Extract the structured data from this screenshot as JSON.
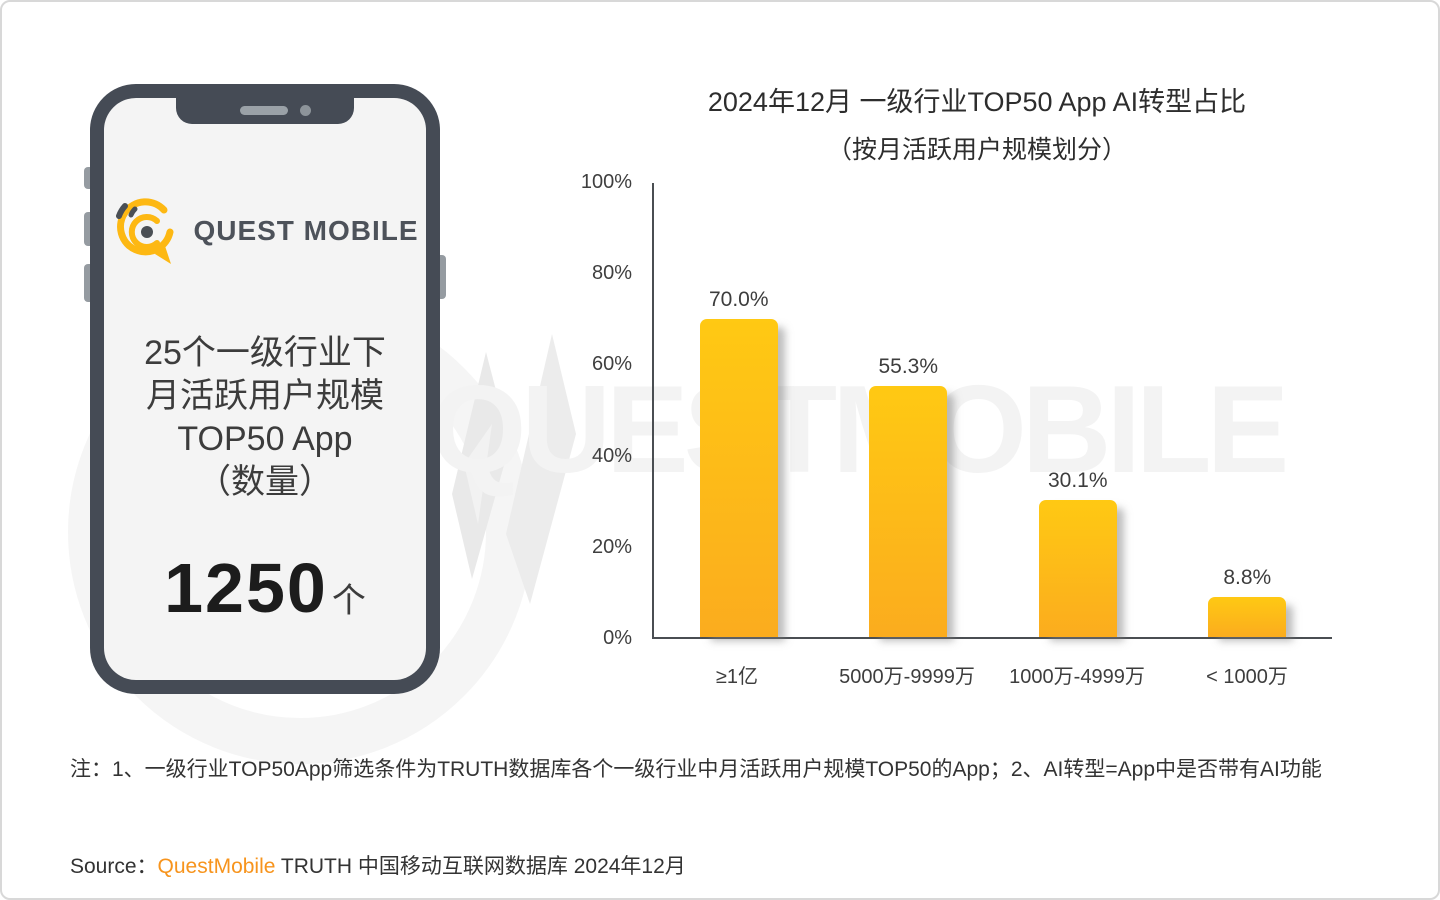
{
  "phone": {
    "brand": "QUEST MOBILE",
    "lines": [
      "25个一级行业下",
      "月活跃用户规模",
      "TOP50 App",
      "（数量）"
    ],
    "big_number": "1250",
    "big_unit": "个"
  },
  "chart_data": {
    "type": "bar",
    "title": "2024年12月 一级行业TOP50 App AI转型占比",
    "subtitle": "（按月活跃用户规模划分）",
    "categories": [
      "≥1亿",
      "5000万-9999万",
      "1000万-4999万",
      "< 1000万"
    ],
    "values": [
      70.0,
      55.3,
      30.1,
      8.8
    ],
    "value_labels": [
      "70.0%",
      "55.3%",
      "30.1%",
      "8.8%"
    ],
    "xlabel": "",
    "ylabel": "",
    "ylim": [
      0,
      100
    ],
    "yticks": [
      "100%",
      "80%",
      "60%",
      "40%",
      "20%",
      "0%"
    ],
    "grid": false,
    "legend_position": "none",
    "bar_color_top": "#FFC913",
    "bar_color_bottom": "#FBAC1E"
  },
  "watermark_text": "QUESTMOBILE",
  "note_text": "注：1、一级行业TOP50App筛选条件为TRUTH数据库各个一级行业中月活跃用户规模TOP50的App；2、AI转型=App中是否带有AI功能",
  "source": {
    "label": "Source：",
    "brand": "QuestMobile",
    "rest": " TRUTH 中国移动互联网数据库 2024年12月"
  },
  "colors": {
    "accent_yellow": "#FDB813",
    "brand_orange": "#F7941D",
    "phone_frame": "#454B55",
    "screen_gray": "#F4F4F4",
    "axis_gray": "#4A4E52",
    "text_dark": "#3D3D3D",
    "watermark_gray": "#F3F3F3"
  }
}
